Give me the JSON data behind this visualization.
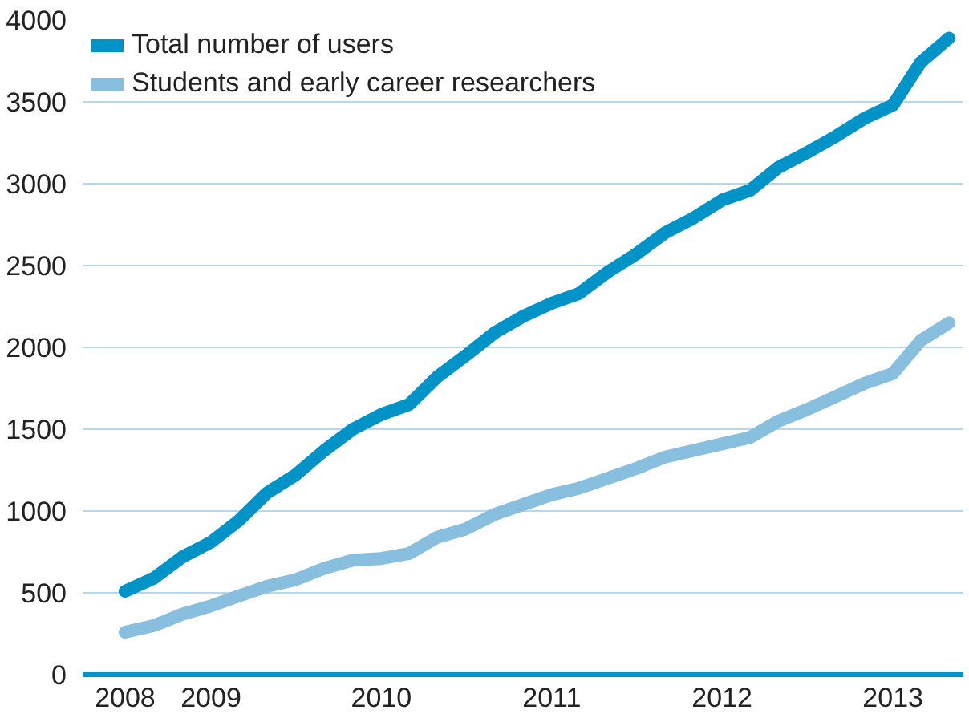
{
  "chart_data": {
    "type": "line",
    "x": [
      "2008-07",
      "2008-09",
      "2008-11",
      "2009-01",
      "2009-03",
      "2009-05",
      "2009-07",
      "2009-09",
      "2009-11",
      "2010-01",
      "2010-03",
      "2010-05",
      "2010-07",
      "2010-09",
      "2010-11",
      "2011-01",
      "2011-03",
      "2011-05",
      "2011-07",
      "2011-09",
      "2011-11",
      "2012-01",
      "2012-03",
      "2012-05",
      "2012-07",
      "2012-09",
      "2012-11",
      "2013-01",
      "2013-03",
      "2013-05"
    ],
    "series": [
      {
        "name": "Total number of users",
        "color": "#0093c8",
        "values": [
          510,
          590,
          720,
          810,
          940,
          1110,
          1220,
          1370,
          1500,
          1590,
          1650,
          1820,
          1950,
          2090,
          2190,
          2270,
          2330,
          2460,
          2570,
          2700,
          2790,
          2900,
          2960,
          3100,
          3190,
          3290,
          3400,
          3480,
          3740,
          3890
        ]
      },
      {
        "name": "Students and early career researchers",
        "color": "#88bfdf",
        "values": [
          260,
          300,
          370,
          420,
          480,
          540,
          580,
          650,
          700,
          710,
          740,
          840,
          890,
          980,
          1040,
          1100,
          1140,
          1200,
          1260,
          1330,
          1370,
          1410,
          1450,
          1550,
          1620,
          1700,
          1780,
          1840,
          2040,
          2150
        ]
      }
    ],
    "xlim": [
      "2008-04",
      "2013-06"
    ],
    "xticks": [
      {
        "value": "2008-07",
        "label": "2008"
      },
      {
        "value": "2009-01",
        "label": "2009"
      },
      {
        "value": "2010-01",
        "label": "2010"
      },
      {
        "value": "2011-01",
        "label": "2011"
      },
      {
        "value": "2012-01",
        "label": "2012"
      },
      {
        "value": "2013-01",
        "label": "2013"
      }
    ],
    "ylim": [
      0,
      4000
    ],
    "yticks": [
      0,
      500,
      1000,
      1500,
      2000,
      2500,
      3000,
      3500,
      4000
    ],
    "grid": "y",
    "legend": "top left",
    "marker": "none",
    "line_style": "solid"
  }
}
